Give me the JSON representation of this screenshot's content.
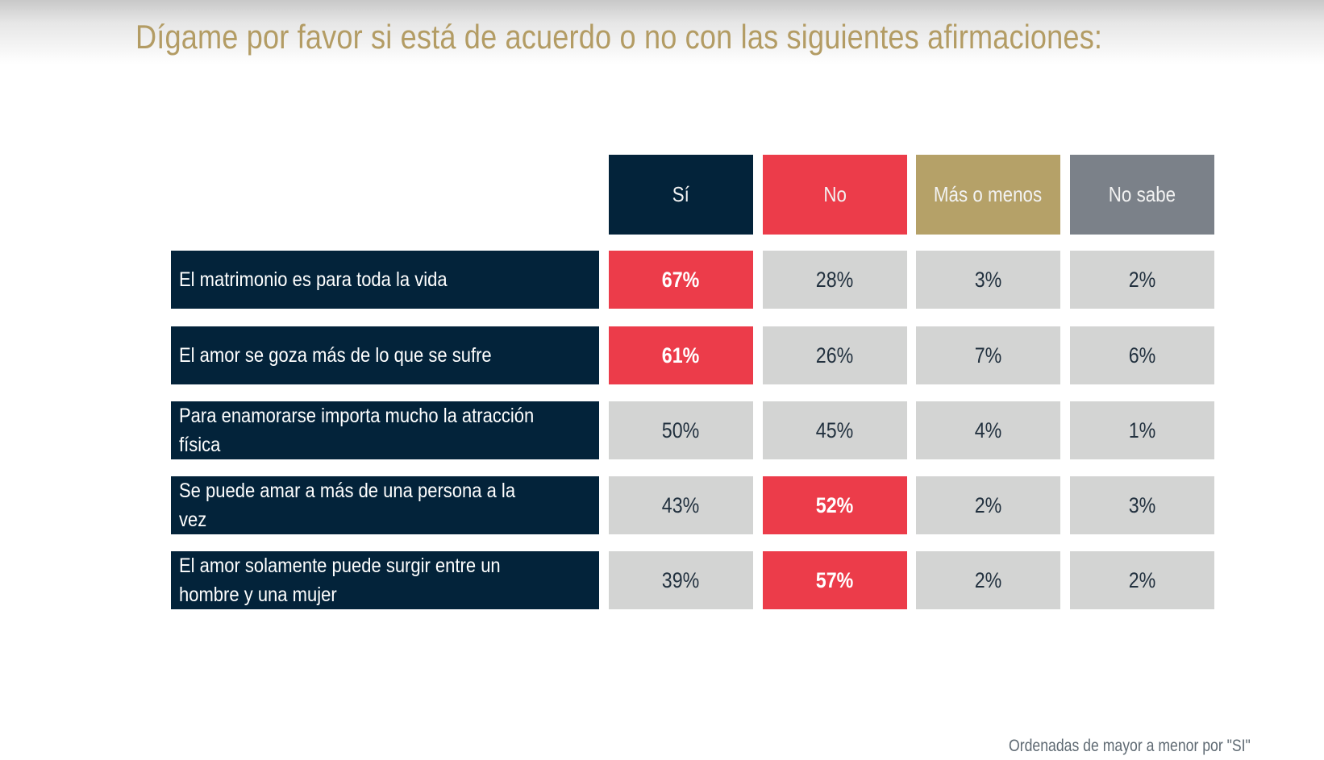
{
  "title": "Dígame por favor si está de acuerdo o no con las siguientes afirmaciones:",
  "footnote": "Ordenadas de mayor a menor por \"SI\"",
  "colors": {
    "si": "#03233a",
    "no": "#ec3c4a",
    "mas_o_menos": "#b5a168",
    "no_sabe": "#7b8189",
    "cell": "#d3d4d3",
    "highlight": "#ec3c4a",
    "title": "#b39c64"
  },
  "chart_data": {
    "type": "table",
    "title": "Dígame por favor si está de acuerdo o no con las siguientes afirmaciones:",
    "columns": [
      "Sí",
      "No",
      "Más o menos",
      "No sabe"
    ],
    "rows": [
      {
        "label": "El matrimonio es para toda la vida",
        "values": [
          "67%",
          "28%",
          "3%",
          "2%"
        ],
        "highlight": 0
      },
      {
        "label": "El amor se goza más de lo que se sufre",
        "values": [
          "61%",
          "26%",
          "7%",
          "6%"
        ],
        "highlight": 0
      },
      {
        "label": " Para enamorarse importa mucho la atracción física",
        "values": [
          "50%",
          "45%",
          "4%",
          "1%"
        ],
        "highlight": -1
      },
      {
        "label": " Se puede amar a más de una persona a la vez",
        "values": [
          "43%",
          "52%",
          "2%",
          "3%"
        ],
        "highlight": 1
      },
      {
        "label": " El amor solamente puede surgir entre un hombre y una mujer",
        "values": [
          "39%",
          "57%",
          "2%",
          "2%"
        ],
        "highlight": 1
      }
    ],
    "note": "Ordenadas de mayor a menor por \"SI\""
  }
}
